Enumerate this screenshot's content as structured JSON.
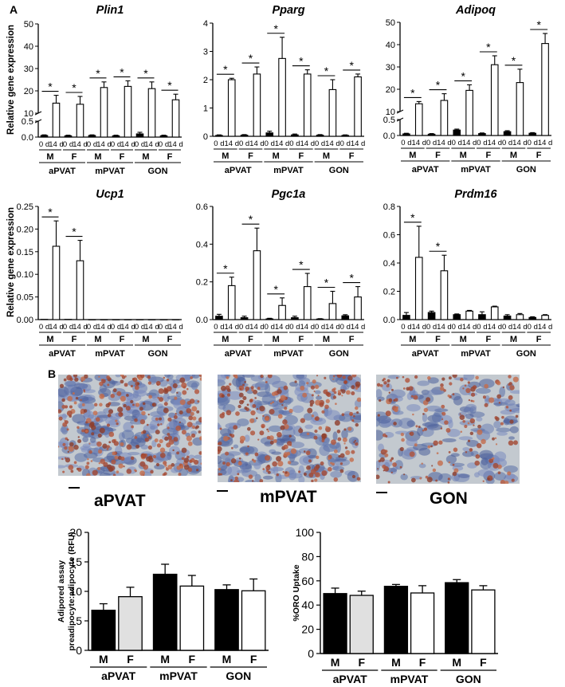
{
  "panel_a_label": "A",
  "panel_b_label": "B",
  "ylabel_a": "Relative gene expression",
  "sublabels": [
    "0 d",
    "14 d"
  ],
  "sexes": [
    "M",
    "F"
  ],
  "groups": [
    "aPVAT",
    "mPVAT",
    "GON"
  ],
  "colors": {
    "bar_m": "#000000",
    "bar_f_grey": "#e0e0e0",
    "bar_open": "#ffffff"
  },
  "chart_data": [
    {
      "type": "bar",
      "title": "Plin1",
      "broken_axis": true,
      "yticks": [
        "0.0",
        "0.5",
        "10",
        "20",
        "30",
        "40",
        "50"
      ],
      "ylim_low": [
        0,
        0.5
      ],
      "ylim_high": [
        10,
        50
      ],
      "categories": [
        "aPVAT M 0 d",
        "aPVAT M 14 d",
        "aPVAT F 0 d",
        "aPVAT F 14 d",
        "mPVAT M 0 d",
        "mPVAT M 14 d",
        "mPVAT F 0 d",
        "mPVAT F 14 d",
        "GON M 0 d",
        "GON M 14 d",
        "GON F 0 d",
        "GON F 14 d"
      ],
      "values": [
        0.05,
        14.5,
        0.04,
        14,
        0.05,
        21.5,
        0.04,
        22,
        0.1,
        21,
        0.04,
        16
      ],
      "errors": [
        0.02,
        3.5,
        0.02,
        3.5,
        0.02,
        2.5,
        0.02,
        2.5,
        0.05,
        3,
        0.02,
        2.5
      ],
      "significance": [
        "*",
        "*",
        "*",
        "*",
        "*",
        "*"
      ]
    },
    {
      "type": "bar",
      "title": "Pparg",
      "broken_axis": false,
      "yticks": [
        "0",
        "1",
        "2",
        "3",
        "4"
      ],
      "ylim": [
        0,
        4
      ],
      "categories": [
        "aPVAT M 0 d",
        "aPVAT M 14 d",
        "aPVAT F 0 d",
        "aPVAT F 14 d",
        "mPVAT M 0 d",
        "mPVAT M 14 d",
        "mPVAT F 0 d",
        "mPVAT F 14 d",
        "GON M 0 d",
        "GON M 14 d",
        "GON F 0 d",
        "GON F 14 d"
      ],
      "values": [
        0.03,
        2.0,
        0.04,
        2.2,
        0.12,
        2.75,
        0.05,
        2.2,
        0.04,
        1.65,
        0.03,
        2.1
      ],
      "errors": [
        0.02,
        0.05,
        0.02,
        0.25,
        0.06,
        0.75,
        0.03,
        0.15,
        0.02,
        0.35,
        0.02,
        0.1
      ],
      "significance": [
        "*",
        "*",
        "*",
        "*",
        "*",
        "*"
      ]
    },
    {
      "type": "bar",
      "title": "Adipoq",
      "broken_axis": true,
      "yticks": [
        "0.0",
        "0.5",
        "10",
        "20",
        "30",
        "40",
        "50"
      ],
      "ylim_low": [
        0,
        0.5
      ],
      "ylim_high": [
        10,
        50
      ],
      "categories": [
        "aPVAT M 0 d",
        "aPVAT M 14 d",
        "aPVAT F 0 d",
        "aPVAT F 14 d",
        "mPVAT M 0 d",
        "mPVAT M 14 d",
        "mPVAT F 0 d",
        "mPVAT F 14 d",
        "GON M 0 d",
        "GON M 14 d",
        "GON F 0 d",
        "GON F 14 d"
      ],
      "values": [
        0.05,
        13.5,
        0.04,
        15,
        0.17,
        19.5,
        0.06,
        31,
        0.12,
        23,
        0.07,
        40.5
      ],
      "errors": [
        0.02,
        1.0,
        0.02,
        3.0,
        0.03,
        2.5,
        0.02,
        4.0,
        0.03,
        6.0,
        0.02,
        4.5
      ],
      "significance": [
        "*",
        "*",
        "*",
        "*",
        "*",
        "*"
      ]
    },
    {
      "type": "bar",
      "title": "Ucp1",
      "broken_axis": false,
      "yticks": [
        "0.00",
        "0.05",
        "0.10",
        "0.15",
        "0.20",
        "0.25"
      ],
      "ylim": [
        0,
        0.25
      ],
      "categories": [
        "aPVAT M 0 d",
        "aPVAT M 14 d",
        "aPVAT F 0 d",
        "aPVAT F 14 d",
        "mPVAT M 0 d",
        "mPVAT M 14 d",
        "mPVAT F 0 d",
        "mPVAT F 14 d",
        "GON M 0 d",
        "GON M 14 d",
        "GON F 0 d",
        "GON F 14 d"
      ],
      "values": [
        0.0005,
        0.162,
        0.0005,
        0.13,
        0,
        0,
        0,
        0,
        0,
        0,
        0,
        0
      ],
      "errors": [
        0,
        0.056,
        0,
        0.045,
        0,
        0,
        0,
        0,
        0,
        0,
        0,
        0
      ],
      "significance": [
        "*",
        "*"
      ]
    },
    {
      "type": "bar",
      "title": "Pgc1a",
      "broken_axis": false,
      "yticks": [
        "0.0",
        "0.2",
        "0.4",
        "0.6"
      ],
      "ylim": [
        0,
        0.6
      ],
      "categories": [
        "aPVAT M 0 d",
        "aPVAT M 14 d",
        "aPVAT F 0 d",
        "aPVAT F 14 d",
        "mPVAT M 0 d",
        "mPVAT M 14 d",
        "mPVAT F 0 d",
        "mPVAT F 14 d",
        "GON M 0 d",
        "GON M 14 d",
        "GON F 0 d",
        "GON F 14 d"
      ],
      "values": [
        0.018,
        0.18,
        0.01,
        0.365,
        0.004,
        0.075,
        0.01,
        0.175,
        0.003,
        0.085,
        0.02,
        0.12
      ],
      "errors": [
        0.01,
        0.045,
        0.008,
        0.12,
        0.003,
        0.04,
        0.008,
        0.07,
        0.002,
        0.065,
        0.006,
        0.055
      ],
      "significance": [
        "*",
        "*",
        "*",
        "*",
        "*",
        "*"
      ]
    },
    {
      "type": "bar",
      "title": "Prdm16",
      "broken_axis": false,
      "yticks": [
        "0.0",
        "0.2",
        "0.4",
        "0.6",
        "0.8"
      ],
      "ylim": [
        0,
        0.8
      ],
      "categories": [
        "aPVAT M 0 d",
        "aPVAT M 14 d",
        "aPVAT F 0 d",
        "aPVAT F 14 d",
        "mPVAT M 0 d",
        "mPVAT M 14 d",
        "mPVAT F 0 d",
        "mPVAT F 14 d",
        "GON M 0 d",
        "GON M 14 d",
        "GON F 0 d",
        "GON F 14 d"
      ],
      "values": [
        0.03,
        0.44,
        0.05,
        0.345,
        0.035,
        0.06,
        0.035,
        0.09,
        0.025,
        0.035,
        0.015,
        0.03
      ],
      "errors": [
        0.02,
        0.22,
        0.01,
        0.11,
        0.005,
        0.005,
        0.02,
        0.005,
        0.01,
        0.008,
        0.005,
        0.005
      ],
      "significance": [
        "*",
        "*"
      ]
    },
    {
      "type": "bar",
      "title": "",
      "ylabel": "Adipored assay\npreadipocyte:adipocyte (RFU)",
      "yticks": [
        "0",
        "5",
        "10",
        "15",
        "20"
      ],
      "ylim": [
        0,
        20
      ],
      "categories": [
        "aPVAT M",
        "aPVAT F",
        "mPVAT M",
        "mPVAT F",
        "GON M",
        "GON F"
      ],
      "values": [
        6.8,
        9.1,
        12.9,
        10.9,
        10.3,
        10.1
      ],
      "errors": [
        1.1,
        1.6,
        1.7,
        1.8,
        0.8,
        2.0
      ]
    },
    {
      "type": "bar",
      "title": "",
      "ylabel": "%ORO Uptake",
      "yticks": [
        "0",
        "20",
        "40",
        "60",
        "80",
        "100"
      ],
      "ylim": [
        0,
        100
      ],
      "categories": [
        "aPVAT M",
        "aPVAT F",
        "mPVAT M",
        "mPVAT F",
        "GON M",
        "GON F"
      ],
      "values": [
        49.5,
        48,
        55.5,
        50,
        58.5,
        52.5
      ],
      "errors": [
        4.5,
        3.5,
        1.5,
        6,
        2.5,
        3.5
      ]
    }
  ],
  "micrographs": [
    {
      "label": "aPVAT",
      "density": 0.9
    },
    {
      "label": "mPVAT",
      "density": 0.8
    },
    {
      "label": "GON",
      "density": 0.55
    }
  ]
}
